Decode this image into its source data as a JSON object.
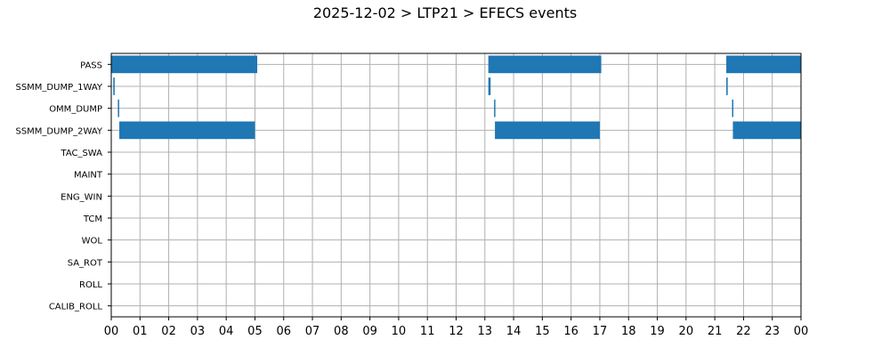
{
  "chart_data": {
    "type": "gantt",
    "title": "2025-12-02 > LTP21 > EFECS events",
    "xlabel": "",
    "ylabel": "",
    "x_ticks": [
      "00",
      "01",
      "02",
      "03",
      "04",
      "05",
      "06",
      "07",
      "08",
      "09",
      "10",
      "11",
      "12",
      "13",
      "14",
      "15",
      "16",
      "17",
      "18",
      "19",
      "20",
      "21",
      "22",
      "23",
      "00"
    ],
    "xlim_hours": [
      0,
      24
    ],
    "grid": true,
    "bar_color": "#1f77b4",
    "categories": [
      "PASS",
      "SSMM_DUMP_1WAY",
      "OMM_DUMP",
      "SSMM_DUMP_2WAY",
      "TAC_SWA",
      "MAINT",
      "ENG_WIN",
      "TCM",
      "WOL",
      "SA_ROT",
      "ROLL",
      "CALIB_ROLL"
    ],
    "events": [
      {
        "category": "PASS",
        "start": 0.0,
        "end": 5.08
      },
      {
        "category": "PASS",
        "start": 13.12,
        "end": 17.05
      },
      {
        "category": "PASS",
        "start": 21.4,
        "end": 24.0
      },
      {
        "category": "SSMM_DUMP_1WAY",
        "start": 0.07,
        "end": 0.12
      },
      {
        "category": "SSMM_DUMP_1WAY",
        "start": 13.12,
        "end": 13.2
      },
      {
        "category": "SSMM_DUMP_1WAY",
        "start": 21.4,
        "end": 21.45
      },
      {
        "category": "OMM_DUMP",
        "start": 0.23,
        "end": 0.27
      },
      {
        "category": "OMM_DUMP",
        "start": 13.32,
        "end": 13.35
      },
      {
        "category": "OMM_DUMP",
        "start": 21.6,
        "end": 21.63
      },
      {
        "category": "SSMM_DUMP_2WAY",
        "start": 0.28,
        "end": 5.0
      },
      {
        "category": "SSMM_DUMP_2WAY",
        "start": 13.35,
        "end": 17.0
      },
      {
        "category": "SSMM_DUMP_2WAY",
        "start": 21.63,
        "end": 24.0
      }
    ]
  }
}
